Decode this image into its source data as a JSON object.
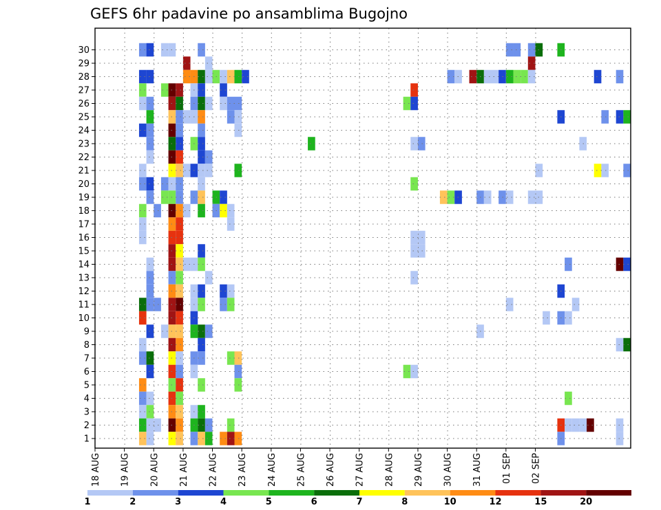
{
  "chart_data": {
    "type": "heatmap",
    "title": "GEFS 6hr padavine po ansamblima Bugojno",
    "xlabel": "",
    "ylabel": "",
    "x_tick_labels": [
      "18 AUG",
      "19 AUG",
      "20 AUG",
      "21 AUG",
      "22 AUG",
      "23 AUG",
      "24 AUG",
      "25 AUG",
      "26 AUG",
      "27 AUG",
      "28 AUG",
      "29 AUG",
      "30 AUG",
      "31 AUG",
      "01 SEP",
      "02 SEP"
    ],
    "y_tick_labels": [
      "1",
      "2",
      "3",
      "4",
      "5",
      "6",
      "7",
      "8",
      "9",
      "10",
      "11",
      "12",
      "13",
      "14",
      "15",
      "16",
      "17",
      "18",
      "19",
      "20",
      "21",
      "22",
      "23",
      "24",
      "25",
      "26",
      "27",
      "28",
      "29",
      "30"
    ],
    "xlim": [
      0,
      60
    ],
    "ylim": [
      0,
      30.5
    ],
    "grid": "dotted",
    "color_levels": [
      "1",
      "2",
      "3",
      "4",
      "5",
      "6",
      "7",
      "8",
      "10",
      "12",
      "15",
      "20"
    ],
    "palette": [
      "#b4c8f5",
      "#6e91eb",
      "#1e46d2",
      "#78e650",
      "#1eb41e",
      "#0a6e0a",
      "#ffff00",
      "#ffc35a",
      "#ff8c14",
      "#e6320f",
      "#a01414",
      "#640000"
    ],
    "cells": [
      {
        "member": 30,
        "t": [
          [
            6,
            1
          ],
          [
            7,
            2
          ],
          [
            9,
            0
          ],
          [
            10,
            0
          ],
          [
            14,
            1
          ],
          [
            56,
            1
          ],
          [
            57,
            1
          ],
          [
            59,
            1
          ],
          [
            60,
            5
          ],
          [
            63,
            4
          ]
        ]
      },
      {
        "member": 29,
        "t": [
          [
            12,
            10
          ],
          [
            15,
            0
          ],
          [
            59,
            10
          ]
        ]
      },
      {
        "member": 28,
        "t": [
          [
            6,
            2
          ],
          [
            7,
            2
          ],
          [
            12,
            8
          ],
          [
            13,
            8
          ],
          [
            14,
            5
          ],
          [
            15,
            0
          ],
          [
            16,
            3
          ],
          [
            17,
            0
          ],
          [
            18,
            7
          ],
          [
            19,
            4
          ],
          [
            20,
            2
          ],
          [
            48,
            1
          ],
          [
            49,
            0
          ],
          [
            51,
            10
          ],
          [
            52,
            5
          ],
          [
            53,
            0
          ],
          [
            54,
            0
          ],
          [
            55,
            2
          ],
          [
            56,
            4
          ],
          [
            57,
            3
          ],
          [
            58,
            3
          ],
          [
            59,
            0
          ],
          [
            68,
            2
          ],
          [
            71,
            1
          ]
        ]
      },
      {
        "member": 27,
        "t": [
          [
            6,
            3
          ],
          [
            9,
            3
          ],
          [
            10,
            11
          ],
          [
            11,
            10
          ],
          [
            13,
            0
          ],
          [
            14,
            2
          ],
          [
            17,
            2
          ],
          [
            43,
            9
          ]
        ]
      },
      {
        "member": 26,
        "t": [
          [
            6,
            0
          ],
          [
            7,
            1
          ],
          [
            10,
            10
          ],
          [
            11,
            5
          ],
          [
            13,
            1
          ],
          [
            14,
            5
          ],
          [
            15,
            0
          ],
          [
            17,
            0
          ],
          [
            18,
            1
          ],
          [
            19,
            1
          ],
          [
            42,
            3
          ],
          [
            43,
            2
          ]
        ]
      },
      {
        "member": 25,
        "t": [
          [
            7,
            4
          ],
          [
            10,
            7
          ],
          [
            11,
            1
          ],
          [
            12,
            0
          ],
          [
            13,
            0
          ],
          [
            14,
            8
          ],
          [
            18,
            1
          ],
          [
            19,
            0
          ],
          [
            63,
            2
          ],
          [
            69,
            1
          ],
          [
            71,
            2
          ],
          [
            72,
            4
          ]
        ]
      },
      {
        "member": 24,
        "t": [
          [
            6,
            2
          ],
          [
            7,
            1
          ],
          [
            10,
            11
          ],
          [
            11,
            1
          ],
          [
            14,
            1
          ],
          [
            19,
            0
          ]
        ]
      },
      {
        "member": 23,
        "t": [
          [
            7,
            1
          ],
          [
            10,
            5
          ],
          [
            11,
            2
          ],
          [
            13,
            3
          ],
          [
            14,
            2
          ],
          [
            29,
            4
          ],
          [
            43,
            0
          ],
          [
            44,
            1
          ],
          [
            66,
            0
          ]
        ]
      },
      {
        "member": 22,
        "t": [
          [
            7,
            0
          ],
          [
            10,
            11
          ],
          [
            11,
            9
          ],
          [
            14,
            2
          ],
          [
            15,
            1
          ]
        ]
      },
      {
        "member": 21,
        "t": [
          [
            6,
            0
          ],
          [
            10,
            6
          ],
          [
            11,
            7
          ],
          [
            12,
            0
          ],
          [
            13,
            2
          ],
          [
            14,
            0
          ],
          [
            15,
            0
          ],
          [
            19,
            4
          ],
          [
            60,
            0
          ],
          [
            68,
            6
          ],
          [
            69,
            0
          ],
          [
            72,
            1
          ]
        ]
      },
      {
        "member": 20,
        "t": [
          [
            6,
            1
          ],
          [
            7,
            2
          ],
          [
            9,
            1
          ],
          [
            10,
            0
          ],
          [
            11,
            1
          ],
          [
            14,
            0
          ],
          [
            43,
            3
          ]
        ]
      },
      {
        "member": 19,
        "t": [
          [
            7,
            1
          ],
          [
            9,
            3
          ],
          [
            10,
            3
          ],
          [
            11,
            1
          ],
          [
            13,
            1
          ],
          [
            14,
            7
          ],
          [
            16,
            4
          ],
          [
            17,
            2
          ],
          [
            47,
            7
          ],
          [
            48,
            3
          ],
          [
            49,
            2
          ],
          [
            52,
            1
          ],
          [
            53,
            0
          ],
          [
            55,
            1
          ],
          [
            56,
            0
          ],
          [
            59,
            0
          ],
          [
            60,
            0
          ]
        ]
      },
      {
        "member": 18,
        "t": [
          [
            6,
            3
          ],
          [
            8,
            1
          ],
          [
            10,
            11
          ],
          [
            11,
            8
          ],
          [
            12,
            0
          ],
          [
            14,
            4
          ],
          [
            16,
            1
          ],
          [
            17,
            6
          ],
          [
            18,
            0
          ]
        ]
      },
      {
        "member": 17,
        "t": [
          [
            6,
            0
          ],
          [
            10,
            8
          ],
          [
            11,
            9
          ],
          [
            18,
            0
          ]
        ]
      },
      {
        "member": 16,
        "t": [
          [
            6,
            0
          ],
          [
            10,
            9
          ],
          [
            11,
            9
          ],
          [
            43,
            0
          ],
          [
            44,
            0
          ]
        ]
      },
      {
        "member": 15,
        "t": [
          [
            10,
            10
          ],
          [
            11,
            6
          ],
          [
            14,
            2
          ],
          [
            43,
            0
          ],
          [
            44,
            0
          ]
        ]
      },
      {
        "member": 14,
        "t": [
          [
            7,
            0
          ],
          [
            10,
            10
          ],
          [
            11,
            7
          ],
          [
            12,
            0
          ],
          [
            13,
            0
          ],
          [
            14,
            3
          ],
          [
            64,
            1
          ],
          [
            71,
            11
          ],
          [
            72,
            2
          ]
        ]
      },
      {
        "member": 13,
        "t": [
          [
            7,
            1
          ],
          [
            10,
            1
          ],
          [
            11,
            3
          ],
          [
            15,
            0
          ],
          [
            43,
            0
          ]
        ]
      },
      {
        "member": 12,
        "t": [
          [
            7,
            1
          ],
          [
            10,
            8
          ],
          [
            11,
            7
          ],
          [
            13,
            0
          ],
          [
            14,
            2
          ],
          [
            17,
            2
          ],
          [
            18,
            0
          ],
          [
            63,
            2
          ]
        ]
      },
      {
        "member": 11,
        "t": [
          [
            6,
            5
          ],
          [
            7,
            1
          ],
          [
            8,
            1
          ],
          [
            10,
            10
          ],
          [
            11,
            11
          ],
          [
            13,
            0
          ],
          [
            14,
            3
          ],
          [
            17,
            1
          ],
          [
            18,
            3
          ],
          [
            56,
            0
          ],
          [
            65,
            0
          ]
        ]
      },
      {
        "member": 10,
        "t": [
          [
            6,
            9
          ],
          [
            10,
            10
          ],
          [
            11,
            9
          ],
          [
            13,
            2
          ],
          [
            61,
            0
          ],
          [
            63,
            1
          ],
          [
            64,
            0
          ]
        ]
      },
      {
        "member": 9,
        "t": [
          [
            7,
            2
          ],
          [
            9,
            0
          ],
          [
            10,
            7
          ],
          [
            11,
            7
          ],
          [
            13,
            4
          ],
          [
            14,
            5
          ],
          [
            15,
            1
          ],
          [
            52,
            0
          ]
        ]
      },
      {
        "member": 8,
        "t": [
          [
            6,
            0
          ],
          [
            10,
            10
          ],
          [
            11,
            8
          ],
          [
            14,
            2
          ],
          [
            71,
            0
          ],
          [
            72,
            5
          ]
        ]
      },
      {
        "member": 7,
        "t": [
          [
            6,
            1
          ],
          [
            7,
            5
          ],
          [
            10,
            6
          ],
          [
            11,
            0
          ],
          [
            13,
            1
          ],
          [
            14,
            1
          ],
          [
            18,
            3
          ],
          [
            19,
            7
          ]
        ]
      },
      {
        "member": 6,
        "t": [
          [
            7,
            2
          ],
          [
            10,
            9
          ],
          [
            11,
            1
          ],
          [
            13,
            0
          ],
          [
            19,
            1
          ],
          [
            42,
            3
          ],
          [
            43,
            0
          ]
        ]
      },
      {
        "member": 5,
        "t": [
          [
            6,
            8
          ],
          [
            10,
            3
          ],
          [
            11,
            9
          ],
          [
            14,
            3
          ],
          [
            19,
            3
          ]
        ]
      },
      {
        "member": 4,
        "t": [
          [
            6,
            1
          ],
          [
            7,
            0
          ],
          [
            10,
            9
          ],
          [
            11,
            3
          ],
          [
            64,
            3
          ]
        ]
      },
      {
        "member": 3,
        "t": [
          [
            6,
            0
          ],
          [
            7,
            3
          ],
          [
            10,
            8
          ],
          [
            11,
            7
          ],
          [
            13,
            0
          ],
          [
            14,
            4
          ]
        ]
      },
      {
        "member": 2,
        "t": [
          [
            6,
            4
          ],
          [
            7,
            0
          ],
          [
            8,
            0
          ],
          [
            10,
            11
          ],
          [
            11,
            8
          ],
          [
            13,
            4
          ],
          [
            14,
            5
          ],
          [
            15,
            1
          ],
          [
            18,
            3
          ],
          [
            63,
            9
          ],
          [
            64,
            0
          ],
          [
            65,
            0
          ],
          [
            66,
            0
          ],
          [
            67,
            11
          ],
          [
            71,
            0
          ]
        ]
      },
      {
        "member": 1,
        "t": [
          [
            6,
            7
          ],
          [
            7,
            0
          ],
          [
            10,
            6
          ],
          [
            11,
            7
          ],
          [
            13,
            1
          ],
          [
            14,
            7
          ],
          [
            15,
            4
          ],
          [
            17,
            8
          ],
          [
            18,
            10
          ],
          [
            19,
            8
          ],
          [
            63,
            1
          ],
          [
            71,
            0
          ]
        ]
      }
    ]
  }
}
